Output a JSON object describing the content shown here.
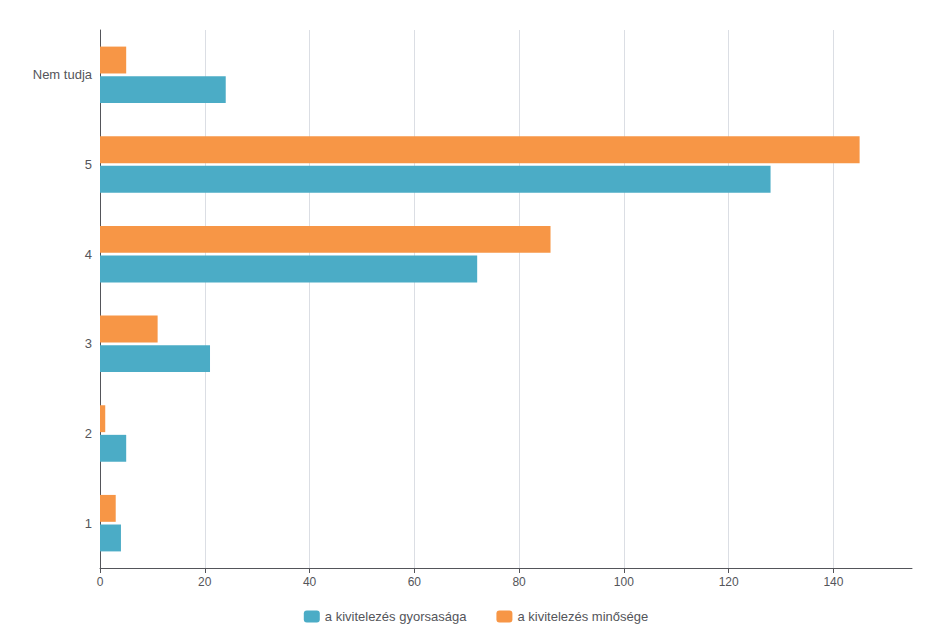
{
  "chart_data": {
    "type": "bar",
    "orientation": "horizontal",
    "categories": [
      "1",
      "2",
      "3",
      "4",
      "5",
      "Nem tudja"
    ],
    "series": [
      {
        "name": "a kivitelezés gyorsasága",
        "color": "#4BACC6",
        "values": [
          4,
          5,
          21,
          72,
          128,
          24
        ]
      },
      {
        "name": "a kivitelezés minősége",
        "color": "#F79646",
        "values": [
          3,
          1,
          11,
          86,
          145,
          5
        ]
      }
    ],
    "xlim": [
      0,
      155
    ],
    "xticks": [
      0,
      20,
      40,
      60,
      80,
      100,
      120,
      140
    ],
    "grid": true,
    "legend": "bottom"
  }
}
